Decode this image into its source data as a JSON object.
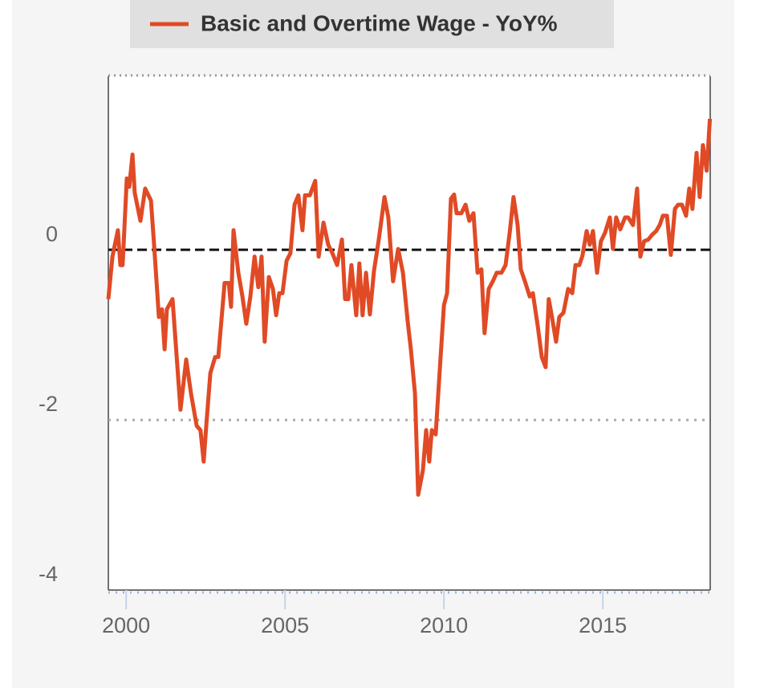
{
  "chart_data": {
    "type": "line",
    "series": [
      {
        "name": "Basic and Overtime Wage - YoY%",
        "color": "#e04a25",
        "values": [
          -0.58,
          -0.08,
          0.23,
          -0.18,
          -0.18,
          0.84,
          0.74,
          1.12,
          0.67,
          0.34,
          0.72,
          0.58,
          0.06,
          -0.79,
          -0.7,
          -1.17,
          -0.7,
          -0.58,
          -1.88,
          -1.29,
          -1.69,
          -2.07,
          -2.12,
          -2.49,
          -2.07,
          -1.45,
          -1.26,
          -1.26,
          -0.39,
          -0.39,
          -0.67,
          0.23,
          -0.27,
          -0.55,
          -0.87,
          -0.55,
          -0.08,
          -0.44,
          -0.08,
          -1.08,
          -0.32,
          -0.46,
          -0.77,
          -0.51,
          -0.51,
          -0.13,
          -0.04,
          0.53,
          0.64,
          0.23,
          0.64,
          0.64,
          0.81,
          -0.08,
          0.32,
          0.06,
          -0.04,
          -0.18,
          0.12,
          -0.58,
          -0.58,
          -0.18,
          -0.77,
          -0.16,
          -0.77,
          -0.27,
          -0.76,
          -0.25,
          0.12,
          0.62,
          0.38,
          -0.37,
          0.01,
          -0.27,
          -0.84,
          -1.17,
          -1.69,
          -2.88,
          -2.59,
          -2.12,
          -2.49,
          -2.12,
          -2.17,
          -1.41,
          -0.65,
          -0.51,
          0.6,
          0.65,
          0.43,
          0.43,
          0.53,
          0.34,
          0.43,
          -0.27,
          -0.23,
          -0.98,
          -0.46,
          -0.37,
          -0.27,
          -0.27,
          -0.18,
          0.2,
          0.62,
          0.29,
          -0.23,
          -0.37,
          -0.55,
          -0.51,
          -0.89,
          -1.26,
          -1.38,
          -0.58,
          -0.79,
          -1.08,
          -0.79,
          -0.74,
          -0.46,
          -0.51,
          -0.18,
          -0.18,
          -0.07,
          0.22,
          0.06,
          0.22,
          -0.27,
          0.1,
          0.2,
          0.38,
          0.01,
          0.38,
          0.24,
          0.38,
          0.38,
          0.29,
          0.72,
          -0.08,
          0.1,
          0.12,
          0.18,
          0.22,
          0.29,
          0.4,
          0.4,
          -0.06,
          0.48,
          0.53,
          0.53,
          0.4,
          0.72,
          0.48,
          1.14,
          0.62,
          1.23,
          0.93,
          1.54
        ]
      }
    ],
    "x": [
      1999.44,
      1999.57,
      1999.74,
      1999.82,
      1999.89,
      2000.02,
      2000.1,
      2000.2,
      2000.27,
      2000.45,
      2000.6,
      2000.78,
      2000.88,
      2001.03,
      2001.13,
      2001.21,
      2001.28,
      2001.46,
      2001.71,
      2001.89,
      2002.04,
      2002.22,
      2002.34,
      2002.44,
      2002.52,
      2002.65,
      2002.8,
      2002.9,
      2003.1,
      2003.23,
      2003.3,
      2003.38,
      2003.53,
      2003.66,
      2003.78,
      2003.91,
      2004.04,
      2004.16,
      2004.26,
      2004.36,
      2004.49,
      2004.62,
      2004.72,
      2004.82,
      2004.92,
      2005.05,
      2005.17,
      2005.3,
      2005.42,
      2005.55,
      2005.63,
      2005.78,
      2005.95,
      2006.06,
      2006.21,
      2006.36,
      2006.49,
      2006.64,
      2006.79,
      2006.89,
      2006.99,
      2007.09,
      2007.24,
      2007.34,
      2007.44,
      2007.55,
      2007.67,
      2007.8,
      2007.95,
      2008.13,
      2008.25,
      2008.4,
      2008.56,
      2008.71,
      2008.86,
      2008.96,
      2009.09,
      2009.19,
      2009.34,
      2009.44,
      2009.54,
      2009.62,
      2009.74,
      2009.87,
      2010.0,
      2010.1,
      2010.22,
      2010.32,
      2010.4,
      2010.55,
      2010.68,
      2010.8,
      2010.93,
      2011.06,
      2011.18,
      2011.28,
      2011.41,
      2011.54,
      2011.66,
      2011.81,
      2011.94,
      2012.07,
      2012.19,
      2012.32,
      2012.42,
      2012.55,
      2012.7,
      2012.8,
      2012.95,
      2013.08,
      2013.2,
      2013.3,
      2013.4,
      2013.53,
      2013.63,
      2013.76,
      2013.91,
      2014.04,
      2014.14,
      2014.26,
      2014.36,
      2014.49,
      2014.59,
      2014.69,
      2014.82,
      2014.94,
      2015.07,
      2015.22,
      2015.32,
      2015.42,
      2015.55,
      2015.7,
      2015.8,
      2015.95,
      2016.08,
      2016.18,
      2016.3,
      2016.43,
      2016.56,
      2016.68,
      2016.79,
      2016.89,
      2017.02,
      2017.14,
      2017.27,
      2017.37,
      2017.49,
      2017.62,
      2017.72,
      2017.82,
      2017.95,
      2018.05,
      2018.15,
      2018.27,
      2018.37
    ],
    "xlim": [
      1999.44,
      2018.38
    ],
    "xticks": [
      2000,
      2005,
      2010,
      2015
    ],
    "ylim": [
      -4,
      2.04
    ],
    "yticks": [
      0,
      -2,
      -4
    ],
    "grid": true,
    "legend": "top"
  }
}
